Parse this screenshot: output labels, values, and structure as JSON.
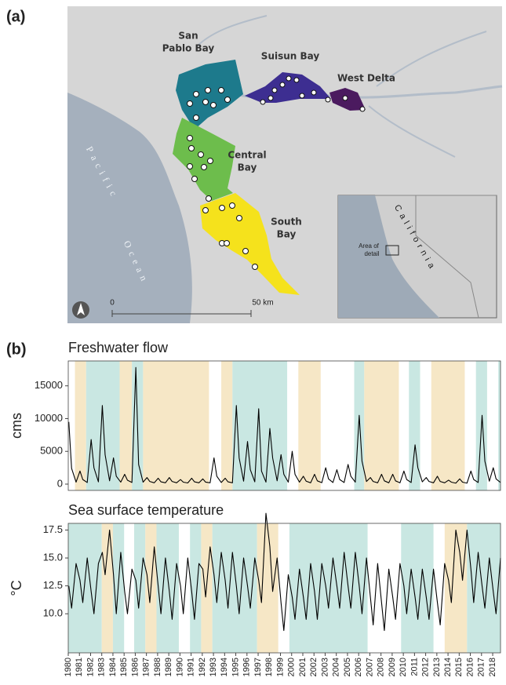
{
  "panel_labels": [
    "(a)",
    "(b)"
  ],
  "map": {
    "regions": {
      "san_pablo": [
        "San",
        "Pablo Bay"
      ],
      "suisun": "Suisun Bay",
      "west_delta": "West Delta",
      "central": [
        "Central",
        "Bay"
      ],
      "south": [
        "South",
        "Bay"
      ]
    },
    "ocean": [
      "Pacific",
      "Ocean"
    ],
    "scale": [
      "0",
      "50 km"
    ],
    "inset": {
      "state": "California",
      "detail": [
        "Area of",
        "detail"
      ]
    }
  },
  "chart_data": [
    {
      "type": "line",
      "title": "Freshwater flow",
      "ylabel": "cms",
      "xlim": [
        1980,
        2018.7
      ],
      "ylim": [
        -960,
        18800
      ],
      "yticks": [
        0,
        5000,
        10000,
        15000
      ],
      "bands": [
        {
          "start": 1980.6,
          "end": 1981.6,
          "color": "#f6e7c6"
        },
        {
          "start": 1981.6,
          "end": 1984.6,
          "color": "#c9e7e2"
        },
        {
          "start": 1984.6,
          "end": 1985.7,
          "color": "#f6e7c6"
        },
        {
          "start": 1985.7,
          "end": 1986.7,
          "color": "#c9e7e2"
        },
        {
          "start": 1986.7,
          "end": 1992.6,
          "color": "#f6e7c6"
        },
        {
          "start": 1993.7,
          "end": 1994.7,
          "color": "#f6e7c6"
        },
        {
          "start": 1994.7,
          "end": 1999.6,
          "color": "#c9e7e2"
        },
        {
          "start": 2000.6,
          "end": 2002.6,
          "color": "#f6e7c6"
        },
        {
          "start": 2005.6,
          "end": 2006.5,
          "color": "#c9e7e2"
        },
        {
          "start": 2006.5,
          "end": 2009.6,
          "color": "#f6e7c6"
        },
        {
          "start": 2010.5,
          "end": 2011.5,
          "color": "#c9e7e2"
        },
        {
          "start": 2012.5,
          "end": 2015.5,
          "color": "#f6e7c6"
        },
        {
          "start": 2016.5,
          "end": 2017.5,
          "color": "#c9e7e2"
        },
        {
          "start": 2018.5,
          "end": 2018.7,
          "color": "#c9e7e2"
        }
      ],
      "x": [
        1980.05,
        1980.3,
        1980.7,
        1981.05,
        1981.3,
        1981.7,
        1982.05,
        1982.3,
        1982.7,
        1983.05,
        1983.3,
        1983.7,
        1984.05,
        1984.3,
        1984.7,
        1985.05,
        1985.3,
        1985.7,
        1986.05,
        1986.3,
        1986.7,
        1987.05,
        1987.3,
        1987.7,
        1988.05,
        1988.3,
        1988.7,
        1989.05,
        1989.3,
        1989.7,
        1990.05,
        1990.3,
        1990.7,
        1991.05,
        1991.3,
        1991.7,
        1992.05,
        1992.3,
        1992.7,
        1993.05,
        1993.3,
        1993.7,
        1994.05,
        1994.3,
        1994.7,
        1995.05,
        1995.3,
        1995.7,
        1996.05,
        1996.3,
        1996.7,
        1997.05,
        1997.3,
        1997.7,
        1998.05,
        1998.3,
        1998.7,
        1999.05,
        1999.3,
        1999.7,
        2000.05,
        2000.3,
        2000.7,
        2001.05,
        2001.3,
        2001.7,
        2002.05,
        2002.3,
        2002.7,
        2003.05,
        2003.3,
        2003.7,
        2004.05,
        2004.3,
        2004.7,
        2005.05,
        2005.3,
        2005.7,
        2006.05,
        2006.3,
        2006.7,
        2007.05,
        2007.3,
        2007.7,
        2008.05,
        2008.3,
        2008.7,
        2009.05,
        2009.3,
        2009.7,
        2010.05,
        2010.3,
        2010.7,
        2011.05,
        2011.3,
        2011.7,
        2012.05,
        2012.3,
        2012.7,
        2013.05,
        2013.3,
        2013.7,
        2014.05,
        2014.3,
        2014.7,
        2015.05,
        2015.3,
        2015.7,
        2016.05,
        2016.3,
        2016.7,
        2017.05,
        2017.3,
        2017.7,
        2018.05,
        2018.3,
        2018.7
      ],
      "series": [
        {
          "name": "Freshwater flow",
          "color": "#000000",
          "values": [
            9500,
            2400,
            300,
            2000,
            700,
            250,
            6800,
            2500,
            350,
            12000,
            4500,
            500,
            4000,
            1200,
            300,
            1500,
            600,
            250,
            17800,
            3000,
            300,
            1000,
            400,
            200,
            900,
            350,
            200,
            1000,
            400,
            200,
            700,
            300,
            180,
            900,
            350,
            200,
            800,
            300,
            200,
            4000,
            1200,
            250,
            900,
            350,
            200,
            12000,
            4000,
            450,
            6500,
            2200,
            350,
            11500,
            2000,
            300,
            8500,
            4000,
            500,
            4500,
            1500,
            300,
            5000,
            1500,
            300,
            1200,
            450,
            200,
            1500,
            500,
            220,
            2500,
            800,
            250,
            2200,
            700,
            250,
            3000,
            1200,
            300,
            10500,
            3500,
            400,
            1000,
            400,
            200,
            1500,
            500,
            200,
            1500,
            500,
            200,
            2000,
            700,
            250,
            6000,
            2500,
            350,
            1000,
            400,
            200,
            1200,
            400,
            200,
            600,
            300,
            150,
            800,
            300,
            150,
            2000,
            700,
            250,
            10500,
            3500,
            450,
            2500,
            800,
            250
          ]
        }
      ]
    },
    {
      "type": "line",
      "title": "Sea surface temperature",
      "ylabel": "°C",
      "xlim": [
        1980,
        2018.7
      ],
      "ylim": [
        6.5,
        18.1
      ],
      "yticks": [
        {
          "value": 10,
          "label": "10.0"
        },
        {
          "value": 12.5,
          "label": "12.5"
        },
        {
          "value": 15,
          "label": "15.0"
        },
        {
          "value": 17.5,
          "label": "17.5"
        }
      ],
      "xticks": [
        1980,
        1981,
        1982,
        1983,
        1984,
        1985,
        1986,
        1987,
        1988,
        1989,
        1990,
        1991,
        1992,
        1993,
        1994,
        1995,
        1996,
        1997,
        1998,
        1999,
        2000,
        2001,
        2002,
        2003,
        2004,
        2005,
        2006,
        2007,
        2008,
        2009,
        2010,
        2011,
        2012,
        2013,
        2014,
        2015,
        2016,
        2017,
        2018
      ],
      "bands": [
        {
          "start": 1980,
          "end": 1983,
          "color": "#c9e7e2"
        },
        {
          "start": 1983,
          "end": 1984,
          "color": "#f6e7c6"
        },
        {
          "start": 1984,
          "end": 1985,
          "color": "#c9e7e2"
        },
        {
          "start": 1985.9,
          "end": 1986.9,
          "color": "#c9e7e2"
        },
        {
          "start": 1986.9,
          "end": 1987.9,
          "color": "#f6e7c6"
        },
        {
          "start": 1987.9,
          "end": 1989.9,
          "color": "#c9e7e2"
        },
        {
          "start": 1990.9,
          "end": 1991.9,
          "color": "#c9e7e2"
        },
        {
          "start": 1991.9,
          "end": 1992.9,
          "color": "#f6e7c6"
        },
        {
          "start": 1992.9,
          "end": 1996.9,
          "color": "#c9e7e2"
        },
        {
          "start": 1996.9,
          "end": 1998.8,
          "color": "#f6e7c6"
        },
        {
          "start": 1999.8,
          "end": 2006.8,
          "color": "#c9e7e2"
        },
        {
          "start": 2009.8,
          "end": 2012.7,
          "color": "#c9e7e2"
        },
        {
          "start": 2013.7,
          "end": 2015.7,
          "color": "#f6e7c6"
        },
        {
          "start": 2015.7,
          "end": 2018.7,
          "color": "#c9e7e2"
        }
      ],
      "x": [
        1980.05,
        1980.3,
        1980.7,
        1981.05,
        1981.3,
        1981.7,
        1982.05,
        1982.3,
        1982.7,
        1983.05,
        1983.3,
        1983.7,
        1984.05,
        1984.3,
        1984.7,
        1985.05,
        1985.3,
        1985.7,
        1986.05,
        1986.3,
        1986.7,
        1987.05,
        1987.3,
        1987.7,
        1988.05,
        1988.3,
        1988.7,
        1989.05,
        1989.3,
        1989.7,
        1990.05,
        1990.3,
        1990.7,
        1991.05,
        1991.3,
        1991.7,
        1992.05,
        1992.3,
        1992.7,
        1993.05,
        1993.3,
        1993.7,
        1994.05,
        1994.3,
        1994.7,
        1995.05,
        1995.3,
        1995.7,
        1996.05,
        1996.3,
        1996.7,
        1997.05,
        1997.3,
        1997.7,
        1998.05,
        1998.3,
        1998.7,
        1999.05,
        1999.3,
        1999.7,
        2000.05,
        2000.3,
        2000.7,
        2001.05,
        2001.3,
        2001.7,
        2002.05,
        2002.3,
        2002.7,
        2003.05,
        2003.3,
        2003.7,
        2004.05,
        2004.3,
        2004.7,
        2005.05,
        2005.3,
        2005.7,
        2006.05,
        2006.3,
        2006.7,
        2007.05,
        2007.3,
        2007.7,
        2008.05,
        2008.3,
        2008.7,
        2009.05,
        2009.3,
        2009.7,
        2010.05,
        2010.3,
        2010.7,
        2011.05,
        2011.3,
        2011.7,
        2012.05,
        2012.3,
        2012.7,
        2013.05,
        2013.3,
        2013.7,
        2014.05,
        2014.3,
        2014.7,
        2015.05,
        2015.3,
        2015.7,
        2016.05,
        2016.3,
        2016.7,
        2017.05,
        2017.3,
        2017.7,
        2018.05,
        2018.3,
        2018.7
      ],
      "series": [
        {
          "name": "Sea surface temperature",
          "color": "#000000",
          "values": [
            12.5,
            10.5,
            14.5,
            13,
            11,
            15,
            12,
            10,
            14.5,
            15.5,
            13.5,
            17.5,
            13.5,
            10,
            15.5,
            12,
            10,
            14,
            13,
            10.5,
            15,
            13.5,
            11,
            16,
            12.5,
            10,
            15,
            12,
            9.5,
            14.5,
            12.5,
            10,
            15,
            12,
            9.5,
            14.5,
            14,
            11.5,
            16,
            13.5,
            11,
            15.5,
            13,
            10.5,
            15.5,
            12.5,
            10,
            15,
            12.5,
            10.5,
            15,
            13,
            11,
            19,
            16,
            12,
            15,
            11,
            8.5,
            13.5,
            11.5,
            9.5,
            14,
            11.5,
            9.5,
            14.5,
            12,
            9.5,
            14.5,
            12.5,
            10.5,
            15,
            12.5,
            10.5,
            15.5,
            12.5,
            10.5,
            15.5,
            12.5,
            10,
            15,
            11.5,
            9,
            14.5,
            11,
            8.5,
            14,
            11.5,
            9.5,
            14.5,
            12.5,
            10,
            14,
            11.5,
            9.5,
            14,
            11.5,
            9.5,
            14,
            11,
            9,
            14.5,
            13,
            11,
            17.5,
            15.5,
            13,
            17.5,
            14,
            11,
            15.5,
            12.5,
            10.5,
            15,
            12,
            10,
            15
          ]
        }
      ]
    }
  ]
}
